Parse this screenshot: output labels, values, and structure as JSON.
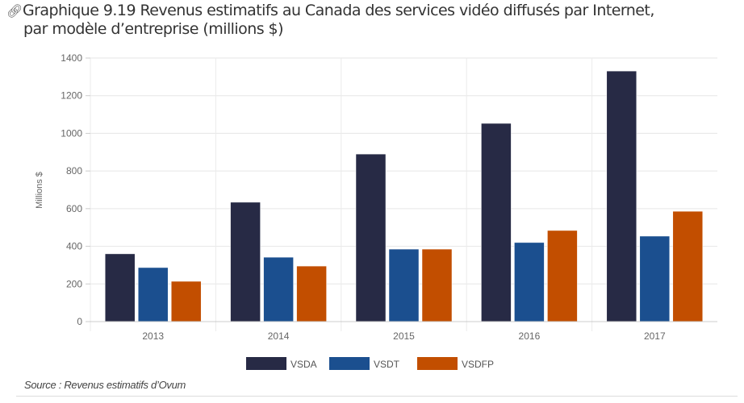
{
  "title": {
    "line1": "Graphique 9.19 Revenus estimatifs au Canada des services vidéo diffusés par Internet,",
    "line2": "par modèle d’entreprise (millions $)",
    "icon": "link-icon"
  },
  "source": "Source : Revenus estimatifs d’Ovum",
  "colors": {
    "VSDA": "#272a45",
    "VSDT": "#1b4f8f",
    "VSDFP": "#c24e00"
  },
  "chart_data": {
    "type": "bar",
    "title": "Graphique 9.19 Revenus estimatifs au Canada des services vidéo diffusés par Internet, par modèle d’entreprise (millions $)",
    "xlabel": "",
    "ylabel": "Millions $",
    "ylim": [
      0,
      1400
    ],
    "yticks": [
      "0",
      "200",
      "400",
      "600",
      "800",
      "1000",
      "1200",
      "1400"
    ],
    "ytick_values": [
      0,
      200,
      400,
      600,
      800,
      1000,
      1200,
      1400
    ],
    "categories": [
      "2013",
      "2014",
      "2015",
      "2016",
      "2017"
    ],
    "series": [
      {
        "name": "VSDA",
        "color": "#272a45",
        "values": [
          360,
          634,
          890,
          1053,
          1331
        ]
      },
      {
        "name": "VSDT",
        "color": "#1b4f8f",
        "values": [
          287,
          342,
          385,
          420,
          454
        ]
      },
      {
        "name": "VSDFP",
        "color": "#c24e00",
        "values": [
          214,
          295,
          385,
          484,
          586
        ]
      }
    ],
    "grid": true,
    "legend": "bottom-center"
  }
}
